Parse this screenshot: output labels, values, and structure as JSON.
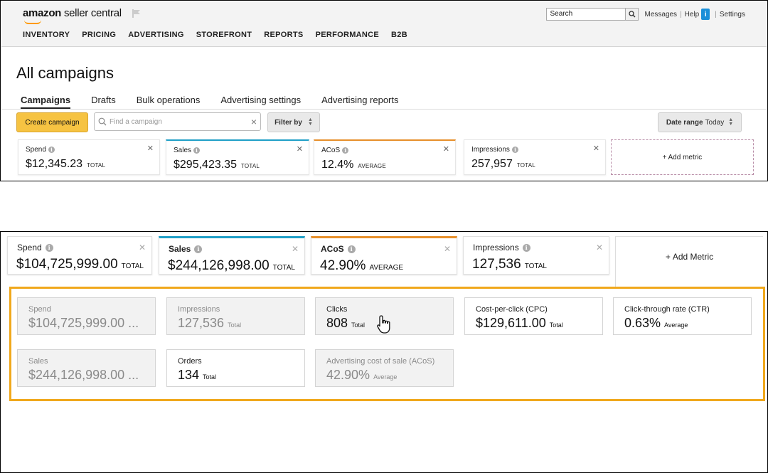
{
  "header": {
    "logo_brand": "amazon",
    "logo_sub": "seller central",
    "search_label": "Search",
    "links": [
      "Messages",
      "Help",
      "Settings"
    ],
    "info_badge": "i",
    "nav": [
      "INVENTORY",
      "PRICING",
      "ADVERTISING",
      "STOREFRONT",
      "REPORTS",
      "PERFORMANCE",
      "B2B"
    ]
  },
  "page": {
    "title": "All campaigns",
    "tabs": [
      "Campaigns",
      "Drafts",
      "Bulk operations",
      "Advertising settings",
      "Advertising reports"
    ],
    "active_tab": "Campaigns"
  },
  "toolbar": {
    "create_label": "Create campaign",
    "find_placeholder": "Find a campaign",
    "filter_label": "Filter by",
    "date_range_label": "Date range",
    "date_range_value": "Today"
  },
  "top_metrics": [
    {
      "label": "Spend",
      "value": "$12,345.23",
      "unit": "TOTAL"
    },
    {
      "label": "Sales",
      "value": "$295,423.35",
      "unit": "TOTAL"
    },
    {
      "label": "ACoS",
      "value": "12.4%",
      "unit": "AVERAGE"
    },
    {
      "label": "Impressions",
      "value": "257,957",
      "unit": "TOTAL"
    }
  ],
  "top_add_metric": "Add metric",
  "bottom_metrics": [
    {
      "label": "Spend",
      "value": "$104,725,999.00",
      "unit": "TOTAL"
    },
    {
      "label": "Sales",
      "value": "$244,126,998.00",
      "unit": "TOTAL"
    },
    {
      "label": "ACoS",
      "value": "42.90%",
      "unit": "AVERAGE"
    },
    {
      "label": "Impressions",
      "value": "127,536",
      "unit": "TOTAL"
    }
  ],
  "bottom_add_metric": "Add Metric",
  "metric_options": [
    {
      "label": "Spend",
      "value": "$104,725,999.00 ...",
      "unit": "",
      "disabled": true
    },
    {
      "label": "Impressions",
      "value": "127,536",
      "unit": "Total",
      "disabled": true
    },
    {
      "label": "Clicks",
      "value": "808",
      "unit": "Total",
      "disabled": false
    },
    {
      "label": "Cost-per-click (CPC)",
      "value": "$129,611.00",
      "unit": "Total",
      "disabled": false
    },
    {
      "label": "Click-through rate (CTR)",
      "value": "0.63%",
      "unit": "Average",
      "disabled": false
    },
    {
      "label": "Sales",
      "value": "$244,126,998.00 ...",
      "unit": "",
      "disabled": true
    },
    {
      "label": "Orders",
      "value": "134",
      "unit": "Total",
      "disabled": false
    },
    {
      "label": "Advertising cost of sale (ACoS)",
      "value": "42.90%",
      "unit": "Average",
      "disabled": true
    }
  ],
  "colors": {
    "accent_yellow": "#f6c342",
    "sales_blue": "#1f9fc7",
    "acos_orange": "#e78f2a",
    "picker_border": "#f0a81c"
  },
  "icons": {
    "close": "close-icon",
    "info": "info-icon",
    "search": "search-icon",
    "flag": "flag-icon",
    "cursor": "hand-cursor-icon"
  }
}
